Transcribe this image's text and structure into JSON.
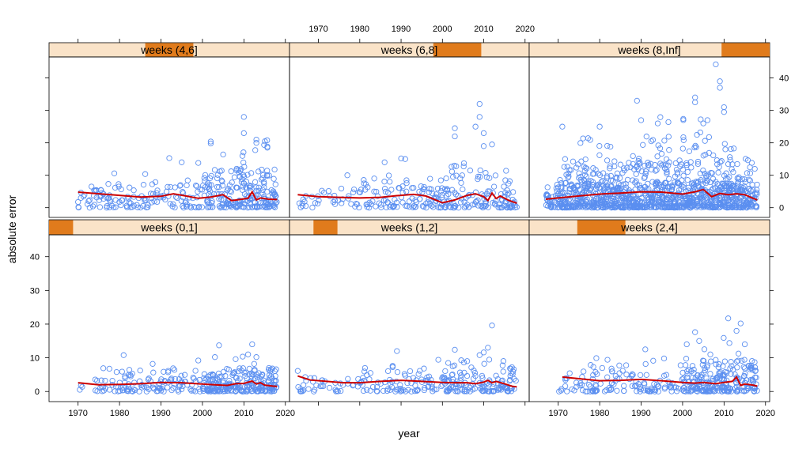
{
  "chart_data": {
    "type": "scatter",
    "title": "",
    "xlabel": "year",
    "ylabel": "absolute error",
    "xlim": [
      1963,
      2021
    ],
    "ylim": [
      -3,
      46.5
    ],
    "x_ticks": [
      1970,
      1980,
      1990,
      2000,
      2010,
      2020
    ],
    "y_ticks": [
      0,
      10,
      20,
      30,
      40
    ],
    "grid": false,
    "legend": "none",
    "colors": {
      "points": "#5b8ff0",
      "trend": "#cc0000",
      "strip_bg": "#fae3c8",
      "strip_marker": "#e07b1c"
    },
    "panels": [
      {
        "label": "weeks (0,1]",
        "row": "bottom",
        "col": 0,
        "strip_range": [
          0,
          1
        ],
        "trend": [
          [
            1970,
            2.6
          ],
          [
            1975,
            2.0
          ],
          [
            1980,
            2.1
          ],
          [
            1985,
            2.3
          ],
          [
            1990,
            2.7
          ],
          [
            1995,
            2.6
          ],
          [
            2000,
            2.2
          ],
          [
            2003,
            2.0
          ],
          [
            2006,
            1.8
          ],
          [
            2008,
            2.3
          ],
          [
            2010,
            2.4
          ],
          [
            2012,
            3.1
          ],
          [
            2013,
            2.2
          ],
          [
            2014,
            2.6
          ],
          [
            2015,
            1.9
          ],
          [
            2017,
            1.6
          ],
          [
            2018,
            1.5
          ]
        ],
        "clusters": [
          {
            "x": [
              1970,
              2018
            ],
            "y_max": 4,
            "n": 90
          },
          {
            "x": [
              1975,
              2000
            ],
            "y_max": 7,
            "n": 70
          },
          {
            "x": [
              2000,
              2018
            ],
            "y_max": 7,
            "n": 160
          },
          {
            "x": [
              2000,
              2018
            ],
            "y_max": 11,
            "n": 25
          }
        ],
        "outliers": [
          [
            1981,
            10.8
          ],
          [
            1988,
            8.2
          ],
          [
            1999,
            9.2
          ],
          [
            2003,
            10.2
          ],
          [
            2004,
            13.7
          ],
          [
            2008,
            9.6
          ],
          [
            2012,
            14.0
          ],
          [
            2013,
            10.2
          ],
          [
            2011,
            11.0
          ]
        ]
      },
      {
        "label": "weeks (1,2]",
        "row": "bottom",
        "col": 1,
        "strip_range": [
          1,
          2
        ],
        "trend": [
          [
            1965,
            4.6
          ],
          [
            1968,
            3.4
          ],
          [
            1972,
            3.0
          ],
          [
            1976,
            2.6
          ],
          [
            1980,
            2.6
          ],
          [
            1985,
            3.0
          ],
          [
            1990,
            3.3
          ],
          [
            1995,
            3.0
          ],
          [
            2000,
            2.7
          ],
          [
            2003,
            2.6
          ],
          [
            2006,
            2.6
          ],
          [
            2008,
            2.3
          ],
          [
            2010,
            2.8
          ],
          [
            2011,
            3.3
          ],
          [
            2012,
            2.6
          ],
          [
            2013,
            3.0
          ],
          [
            2015,
            2.3
          ],
          [
            2017,
            1.5
          ],
          [
            2018,
            1.4
          ]
        ],
        "clusters": [
          {
            "x": [
              1965,
              2018
            ],
            "y_max": 5,
            "n": 110
          },
          {
            "x": [
              1980,
              2018
            ],
            "y_max": 8,
            "n": 90
          },
          {
            "x": [
              2000,
              2018
            ],
            "y_max": 10,
            "n": 60
          }
        ],
        "outliers": [
          [
            1965,
            6.1
          ],
          [
            1989,
            12.0
          ],
          [
            1999,
            9.4
          ],
          [
            2003,
            12.4
          ],
          [
            2009,
            10.8
          ],
          [
            2010,
            11.6
          ],
          [
            2011,
            13.0
          ],
          [
            2012,
            19.6
          ],
          [
            2006,
            9.0
          ]
        ]
      },
      {
        "label": "weeks (2,4]",
        "row": "bottom",
        "col": 2,
        "strip_range": [
          2,
          4
        ],
        "trend": [
          [
            1971,
            4.3
          ],
          [
            1975,
            3.8
          ],
          [
            1980,
            3.2
          ],
          [
            1985,
            3.3
          ],
          [
            1990,
            3.6
          ],
          [
            1995,
            3.2
          ],
          [
            2000,
            2.7
          ],
          [
            2003,
            2.5
          ],
          [
            2005,
            2.7
          ],
          [
            2008,
            2.3
          ],
          [
            2010,
            2.7
          ],
          [
            2012,
            3.0
          ],
          [
            2013,
            4.3
          ],
          [
            2014,
            1.8
          ],
          [
            2015,
            2.2
          ],
          [
            2017,
            1.9
          ],
          [
            2018,
            1.6
          ]
        ],
        "clusters": [
          {
            "x": [
              1970,
              2018
            ],
            "y_max": 6,
            "n": 150
          },
          {
            "x": [
              1975,
              2000
            ],
            "y_max": 10,
            "n": 50
          },
          {
            "x": [
              2000,
              2018
            ],
            "y_max": 10,
            "n": 130
          },
          {
            "x": [
              2005,
              2016
            ],
            "y_max": 16,
            "n": 30
          }
        ],
        "outliers": [
          [
            1991,
            12.5
          ],
          [
            2003,
            17.6
          ],
          [
            2004,
            15.0
          ],
          [
            2011,
            21.7
          ],
          [
            2014,
            20.2
          ],
          [
            2013,
            18.0
          ],
          [
            2001,
            14.0
          ],
          [
            2015,
            14.0
          ]
        ]
      },
      {
        "label": "weeks (4,6]",
        "row": "top",
        "col": 0,
        "strip_range": [
          4,
          6
        ],
        "trend": [
          [
            1970,
            4.8
          ],
          [
            1975,
            4.3
          ],
          [
            1980,
            3.8
          ],
          [
            1985,
            3.3
          ],
          [
            1990,
            3.5
          ],
          [
            1993,
            4.3
          ],
          [
            1996,
            3.6
          ],
          [
            1999,
            2.9
          ],
          [
            2002,
            3.3
          ],
          [
            2005,
            4.0
          ],
          [
            2007,
            2.2
          ],
          [
            2009,
            2.5
          ],
          [
            2011,
            2.9
          ],
          [
            2012,
            4.9
          ],
          [
            2013,
            2.4
          ],
          [
            2014,
            3.0
          ],
          [
            2016,
            2.6
          ],
          [
            2018,
            2.5
          ]
        ],
        "clusters": [
          {
            "x": [
              1970,
              2018
            ],
            "y_max": 7,
            "n": 150
          },
          {
            "x": [
              1975,
              2005
            ],
            "y_max": 11,
            "n": 50
          },
          {
            "x": [
              2000,
              2018
            ],
            "y_max": 12,
            "n": 120
          },
          {
            "x": [
              2008,
              2016
            ],
            "y_max": 22,
            "n": 35
          }
        ],
        "outliers": [
          [
            1992,
            15.3
          ],
          [
            1995,
            14.0
          ],
          [
            2002,
            19.8
          ],
          [
            2002,
            20.4
          ],
          [
            2005,
            16.4
          ],
          [
            2010,
            28.0
          ],
          [
            2010,
            23.0
          ],
          [
            2013,
            21.0
          ],
          [
            2013,
            20.0
          ],
          [
            1999,
            13.8
          ]
        ]
      },
      {
        "label": "weeks (6,8]",
        "row": "top",
        "col": 1,
        "strip_range": [
          6,
          8
        ],
        "trend": [
          [
            1965,
            4.0
          ],
          [
            1970,
            3.4
          ],
          [
            1975,
            3.2
          ],
          [
            1980,
            3.0
          ],
          [
            1985,
            3.2
          ],
          [
            1989,
            3.7
          ],
          [
            1993,
            4.1
          ],
          [
            1996,
            3.6
          ],
          [
            2000,
            1.5
          ],
          [
            2003,
            2.4
          ],
          [
            2006,
            3.8
          ],
          [
            2008,
            4.3
          ],
          [
            2010,
            3.4
          ],
          [
            2011,
            2.2
          ],
          [
            2012,
            4.5
          ],
          [
            2013,
            2.8
          ],
          [
            2014,
            3.6
          ],
          [
            2016,
            2.3
          ],
          [
            2018,
            1.4
          ]
        ],
        "clusters": [
          {
            "x": [
              1965,
              2018
            ],
            "y_max": 6,
            "n": 130
          },
          {
            "x": [
              1980,
              2018
            ],
            "y_max": 10,
            "n": 90
          },
          {
            "x": [
              2000,
              2018
            ],
            "y_max": 14,
            "n": 50
          }
        ],
        "outliers": [
          [
            1977,
            10.0
          ],
          [
            1990,
            15.2
          ],
          [
            1991,
            15.0
          ],
          [
            2003,
            24.5
          ],
          [
            2003,
            22.0
          ],
          [
            2009,
            32.0
          ],
          [
            2009,
            28.0
          ],
          [
            2010,
            23.0
          ],
          [
            2010,
            19.0
          ],
          [
            2008,
            25.0
          ],
          [
            2012,
            19.5
          ],
          [
            1986,
            14.0
          ]
        ]
      },
      {
        "label": "weeks (8,Inf]",
        "row": "top",
        "col": 2,
        "strip_range": [
          8,
          10
        ],
        "trend": [
          [
            1967,
            2.6
          ],
          [
            1970,
            3.0
          ],
          [
            1975,
            3.6
          ],
          [
            1980,
            4.2
          ],
          [
            1985,
            4.5
          ],
          [
            1990,
            4.9
          ],
          [
            1995,
            4.8
          ],
          [
            2000,
            4.2
          ],
          [
            2003,
            4.9
          ],
          [
            2005,
            5.6
          ],
          [
            2007,
            3.4
          ],
          [
            2009,
            4.4
          ],
          [
            2011,
            4.0
          ],
          [
            2013,
            4.3
          ],
          [
            2015,
            4.0
          ],
          [
            2017,
            2.9
          ],
          [
            2018,
            2.4
          ]
        ],
        "clusters": [
          {
            "x": [
              1967,
              2018
            ],
            "y_max": 8,
            "n": 520
          },
          {
            "x": [
              1970,
              2018
            ],
            "y_max": 15,
            "n": 380
          },
          {
            "x": [
              1975,
              2016
            ],
            "y_max": 22,
            "n": 160
          },
          {
            "x": [
              1985,
              2013
            ],
            "y_max": 28,
            "n": 60
          }
        ],
        "outliers": [
          [
            2008,
            44.2
          ],
          [
            2009,
            39.0
          ],
          [
            2009,
            37.0
          ],
          [
            2003,
            34.0
          ],
          [
            2003,
            32.5
          ],
          [
            1989,
            33.0
          ],
          [
            2010,
            31.0
          ],
          [
            2010,
            29.5
          ],
          [
            1990,
            27.0
          ],
          [
            2006,
            27.0
          ],
          [
            1971,
            25.0
          ],
          [
            1980,
            25.0
          ],
          [
            1994,
            26.0
          ],
          [
            2005,
            26.0
          ]
        ]
      }
    ]
  }
}
